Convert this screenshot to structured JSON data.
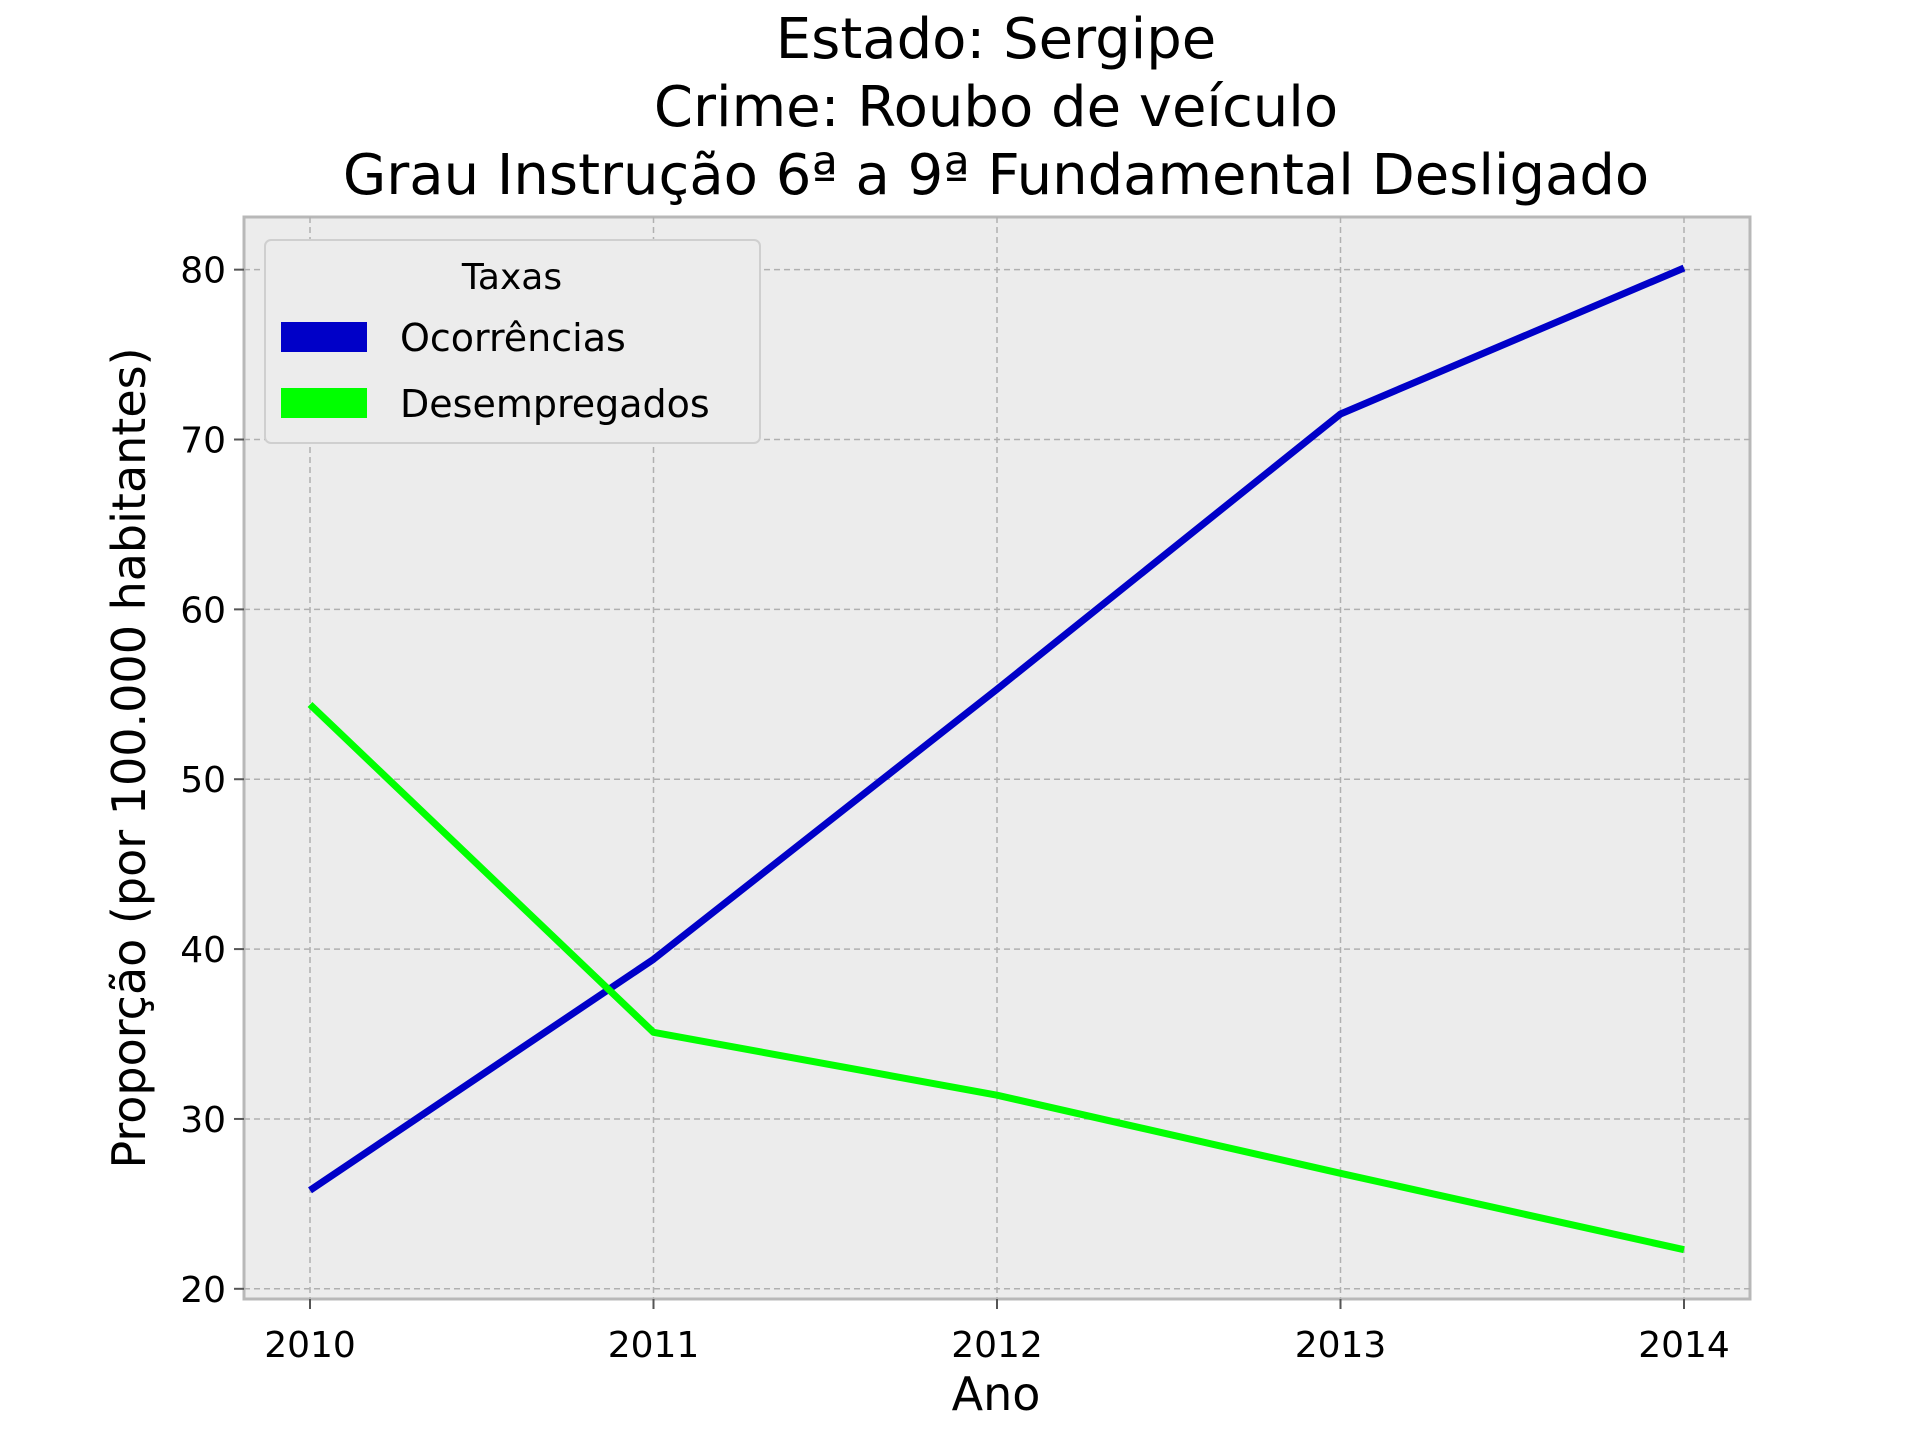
{
  "chart_data": {
    "type": "line",
    "title_lines": [
      "Estado: Sergipe",
      "Crime: Roubo de veículo",
      "Grau Instrução  6ª a 9ª Fundamental   Desligado"
    ],
    "xlabel": "Ano",
    "ylabel": "Proporção (por 100.000 habitantes)",
    "x": [
      2010,
      2011,
      2012,
      2013,
      2014
    ],
    "x_ticks": [
      "2010",
      "2011",
      "2012",
      "2013",
      "2014"
    ],
    "y_ticks": [
      "20",
      "30",
      "40",
      "50",
      "60",
      "70",
      "80"
    ],
    "ylim": [
      19.4,
      83.1
    ],
    "grid": true,
    "legend": {
      "title": "Taxas",
      "placement": "upper-left"
    },
    "series": [
      {
        "name": "Ocorrências",
        "color": "#0000c8",
        "values": [
          25.8,
          39.4,
          55.3,
          71.5,
          80.1
        ]
      },
      {
        "name": "Desempregados",
        "color": "#00ff00",
        "values": [
          54.4,
          35.1,
          31.4,
          26.8,
          22.3
        ]
      }
    ]
  }
}
